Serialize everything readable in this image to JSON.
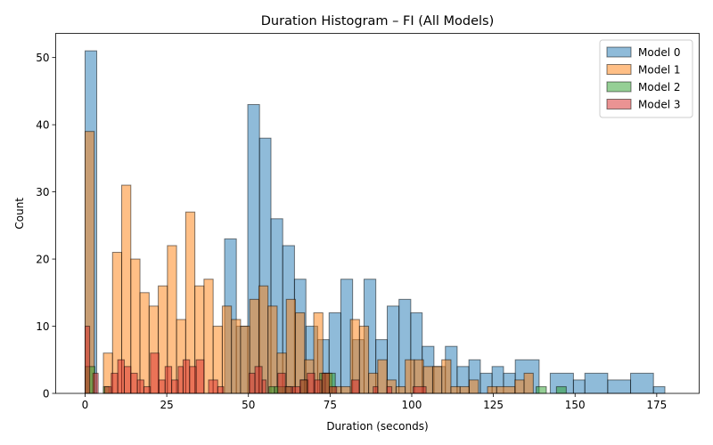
{
  "chart_data": {
    "type": "histogram",
    "title": "Duration Histogram – FI (All Models)",
    "xlabel": "Duration (seconds)",
    "ylabel": "Count",
    "xlim": [
      -9,
      188
    ],
    "ylim": [
      0,
      53.6
    ],
    "xticks": [
      0,
      25,
      50,
      75,
      100,
      125,
      150,
      175
    ],
    "yticks": [
      0,
      10,
      20,
      30,
      40,
      50
    ],
    "legend_position": "top-right",
    "grid": false,
    "series": [
      {
        "name": "Model 0",
        "color": "#1f77b4",
        "bin_width": 3.56,
        "x0": 0,
        "counts": [
          51,
          0,
          0,
          0,
          0,
          0,
          0,
          0,
          0,
          0,
          0,
          0,
          0,
          0,
          0,
          0,
          0,
          0,
          0,
          0,
          0,
          0,
          0,
          0,
          0,
          0,
          0,
          0,
          0,
          0,
          0,
          0,
          0,
          0,
          0,
          0,
          0,
          0,
          0,
          0,
          0,
          0,
          0,
          0,
          0,
          0,
          0,
          0,
          0,
          0,
          0,
          0,
          0,
          0,
          0,
          0,
          0,
          0,
          0,
          0,
          0,
          0,
          0,
          0,
          0,
          0,
          0,
          0,
          0,
          0,
          0,
          0,
          0,
          0,
          0,
          0,
          0,
          0,
          0,
          0,
          0,
          0,
          0,
          0,
          0,
          0,
          0,
          0,
          0,
          0,
          0,
          0,
          0,
          0,
          0,
          0,
          0,
          0,
          0,
          0,
          0,
          0,
          0,
          0,
          0,
          0,
          0,
          0,
          0,
          0,
          0,
          0,
          0,
          0,
          0,
          0,
          0,
          0,
          0,
          0,
          0,
          0,
          0,
          0,
          0,
          0,
          0,
          0,
          0,
          0,
          0,
          0,
          0,
          0,
          0,
          0,
          0,
          0,
          0,
          0,
          0,
          0,
          0,
          0,
          0,
          0,
          0,
          0,
          0,
          0,
          0,
          0,
          0,
          0,
          0,
          0,
          0,
          0,
          0,
          0,
          0,
          0,
          0,
          0,
          0,
          0,
          0,
          0,
          0,
          0,
          0,
          0,
          0,
          0,
          0,
          0,
          0,
          0,
          0,
          0,
          0,
          0,
          0,
          0,
          0,
          0,
          0,
          0,
          0,
          0,
          0,
          0,
          0,
          0,
          0,
          0,
          0,
          0,
          0,
          0,
          0
        ],
        "bins": [
          [
            0,
            3.56,
            51
          ],
          [
            42.7,
            46.3,
            23
          ],
          [
            46.3,
            49.8,
            10
          ],
          [
            49.8,
            53.4,
            43
          ],
          [
            53.4,
            56.9,
            38
          ],
          [
            56.9,
            60.5,
            26
          ],
          [
            60.5,
            64.1,
            22
          ],
          [
            64.1,
            67.6,
            17
          ],
          [
            67.6,
            71.2,
            10
          ],
          [
            71.2,
            74.7,
            8
          ],
          [
            74.7,
            78.3,
            12
          ],
          [
            78.3,
            81.9,
            17
          ],
          [
            81.9,
            85.4,
            8
          ],
          [
            85.4,
            89,
            17
          ],
          [
            89,
            92.5,
            8
          ],
          [
            92.5,
            96.1,
            13
          ],
          [
            96.1,
            99.7,
            14
          ],
          [
            99.7,
            103.2,
            12
          ],
          [
            103.2,
            106.8,
            7
          ],
          [
            106.8,
            110.3,
            4
          ],
          [
            110.3,
            113.9,
            7
          ],
          [
            113.9,
            117.5,
            4
          ],
          [
            117.5,
            121,
            5
          ],
          [
            121,
            124.6,
            3
          ],
          [
            124.6,
            128.1,
            4
          ],
          [
            128.1,
            131.7,
            3
          ],
          [
            131.7,
            139,
            5
          ],
          [
            142.4,
            149.5,
            3
          ],
          [
            149.5,
            153,
            2
          ],
          [
            153,
            160,
            3
          ],
          [
            160,
            167,
            2
          ],
          [
            167,
            174,
            3
          ],
          [
            174,
            177.5,
            1
          ]
        ]
      },
      {
        "name": "Model 1",
        "color": "#ff7f0e",
        "bins": [
          [
            0,
            2.8,
            39
          ],
          [
            5.6,
            8.4,
            6
          ],
          [
            8.4,
            11.2,
            21
          ],
          [
            11.2,
            14,
            31
          ],
          [
            14,
            16.8,
            20
          ],
          [
            16.8,
            19.6,
            15
          ],
          [
            19.6,
            22.4,
            13
          ],
          [
            22.4,
            25.2,
            16
          ],
          [
            25.2,
            28,
            22
          ],
          [
            28,
            30.8,
            11
          ],
          [
            30.8,
            33.6,
            27
          ],
          [
            33.6,
            36.4,
            16
          ],
          [
            36.4,
            39.2,
            17
          ],
          [
            39.2,
            42,
            10
          ],
          [
            42,
            44.8,
            13
          ],
          [
            44.8,
            47.6,
            11
          ],
          [
            47.6,
            50.4,
            10
          ],
          [
            50.4,
            53.2,
            14
          ],
          [
            53.2,
            56,
            16
          ],
          [
            56,
            58.8,
            13
          ],
          [
            58.8,
            61.6,
            6
          ],
          [
            61.6,
            64.4,
            14
          ],
          [
            64.4,
            67.2,
            12
          ],
          [
            67.2,
            70,
            5
          ],
          [
            70,
            72.8,
            12
          ],
          [
            72.8,
            75.6,
            3
          ],
          [
            75.6,
            78.4,
            1
          ],
          [
            78.4,
            81.2,
            1
          ],
          [
            81.2,
            84,
            11
          ],
          [
            84,
            86.8,
            10
          ],
          [
            86.8,
            89.6,
            3
          ],
          [
            89.6,
            92.4,
            5
          ],
          [
            92.4,
            95.2,
            2
          ],
          [
            95.2,
            98,
            1
          ],
          [
            98,
            100.8,
            5
          ],
          [
            100.8,
            103.6,
            5
          ],
          [
            103.6,
            106.4,
            4
          ],
          [
            106.4,
            109.2,
            4
          ],
          [
            109.2,
            112,
            5
          ],
          [
            112,
            114.8,
            1
          ],
          [
            114.8,
            117.6,
            1
          ],
          [
            117.6,
            120.4,
            2
          ],
          [
            120.4,
            123.2,
            0
          ],
          [
            123.2,
            126,
            1
          ],
          [
            126,
            131.6,
            1
          ],
          [
            131.6,
            134.4,
            2
          ],
          [
            134.4,
            137.2,
            3
          ]
        ]
      },
      {
        "name": "Model 2",
        "color": "#2ca02c",
        "bins": [
          [
            0,
            3,
            4
          ],
          [
            5.6,
            7.4,
            1
          ],
          [
            56.3,
            58,
            1
          ],
          [
            58,
            63.1,
            1
          ],
          [
            66,
            68.3,
            2
          ],
          [
            71.8,
            73.5,
            3
          ],
          [
            73.5,
            76.6,
            3
          ],
          [
            138.1,
            141.2,
            1
          ],
          [
            144.3,
            147.3,
            1
          ]
        ]
      },
      {
        "name": "Model 3",
        "color": "#d62728",
        "bins": [
          [
            0,
            1.4,
            10
          ],
          [
            2.4,
            4,
            3
          ],
          [
            6,
            8,
            1
          ],
          [
            8,
            10,
            3
          ],
          [
            10,
            12,
            5
          ],
          [
            12,
            14,
            4
          ],
          [
            14,
            16,
            3
          ],
          [
            16,
            18,
            2
          ],
          [
            18,
            20,
            1
          ],
          [
            20,
            22.6,
            6
          ],
          [
            22.6,
            24.5,
            2
          ],
          [
            24.5,
            26.5,
            4
          ],
          [
            26.5,
            28.5,
            2
          ],
          [
            28.5,
            30,
            4
          ],
          [
            30,
            32,
            5
          ],
          [
            32,
            34,
            4
          ],
          [
            34,
            36.4,
            5
          ],
          [
            37.8,
            40.6,
            2
          ],
          [
            40.6,
            42.4,
            1
          ],
          [
            50.2,
            52,
            3
          ],
          [
            52,
            54.2,
            4
          ],
          [
            54.2,
            55.4,
            2
          ],
          [
            59,
            61.3,
            3
          ],
          [
            61.3,
            63.5,
            1
          ],
          [
            63.5,
            65.8,
            1
          ],
          [
            65.8,
            68,
            2
          ],
          [
            68,
            70.3,
            3
          ],
          [
            70.3,
            72.5,
            2
          ],
          [
            72.5,
            74.8,
            3
          ],
          [
            74.8,
            77,
            1
          ],
          [
            81.6,
            83.9,
            2
          ],
          [
            88.2,
            89.6,
            1
          ],
          [
            92.4,
            93.9,
            1
          ],
          [
            100.4,
            104.4,
            1
          ]
        ]
      }
    ]
  }
}
